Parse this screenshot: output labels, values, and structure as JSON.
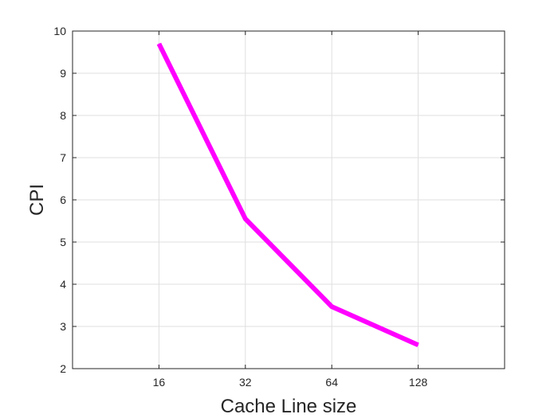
{
  "chart_data": {
    "type": "line",
    "x_scale": "log2",
    "x": [
      16,
      32,
      64,
      128
    ],
    "x_tick_labels": [
      "16",
      "32",
      "64",
      "128"
    ],
    "xlim": [
      8,
      256
    ],
    "series": [
      {
        "values": [
          9.7,
          5.55,
          3.47,
          2.56
        ],
        "color": "#ff00ff"
      }
    ],
    "ylim": [
      2,
      10
    ],
    "y_ticks": [
      2,
      3,
      4,
      5,
      6,
      7,
      8,
      9,
      10
    ],
    "y_tick_labels": [
      "2",
      "3",
      "4",
      "5",
      "6",
      "7",
      "8",
      "9",
      "10"
    ],
    "xlabel": "Cache Line size",
    "ylabel": "CPI",
    "grid": true,
    "legend": false
  }
}
